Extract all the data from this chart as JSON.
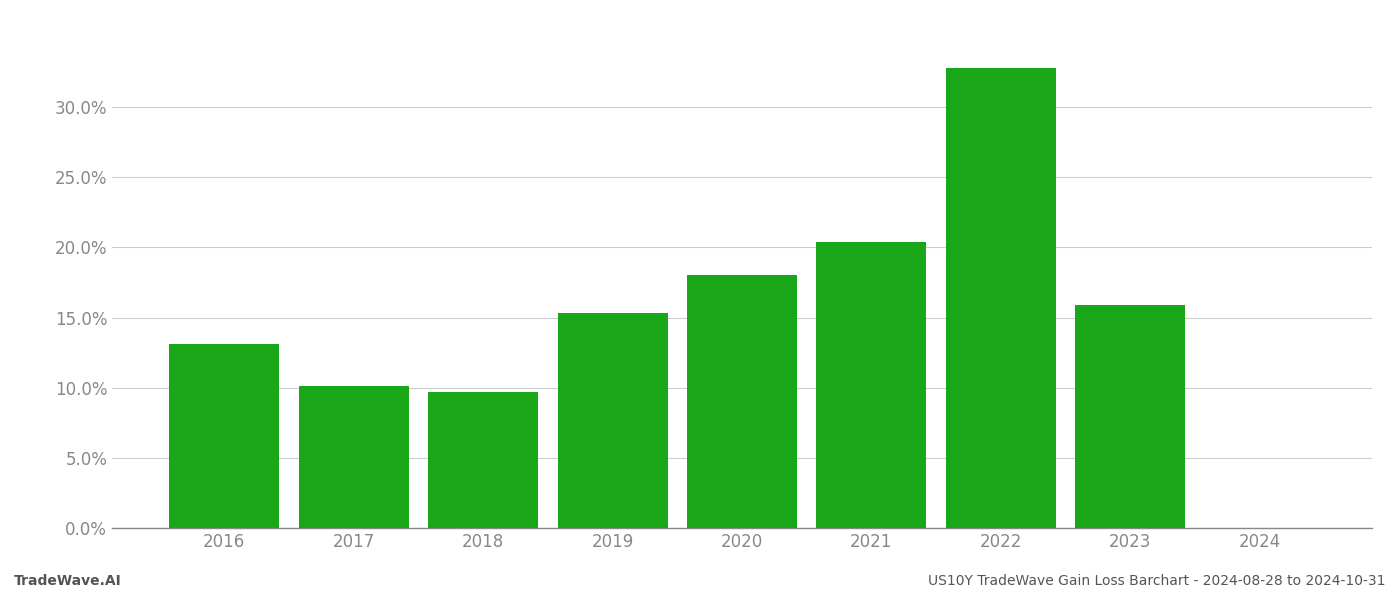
{
  "categories": [
    "2016",
    "2017",
    "2018",
    "2019",
    "2020",
    "2021",
    "2022",
    "2023",
    "2024"
  ],
  "values": [
    0.131,
    0.101,
    0.097,
    0.153,
    0.18,
    0.204,
    0.328,
    0.159,
    0.0
  ],
  "bar_color": "#1aa619",
  "background_color": "#ffffff",
  "grid_color": "#cccccc",
  "footer_left": "TradeWave.AI",
  "footer_right": "US10Y TradeWave Gain Loss Barchart - 2024-08-28 to 2024-10-31",
  "ylim": [
    0,
    0.355
  ],
  "yticks": [
    0.0,
    0.05,
    0.1,
    0.15,
    0.2,
    0.25,
    0.3
  ],
  "footer_fontsize": 10,
  "tick_fontsize": 12,
  "axis_label_color": "#888888",
  "footer_color": "#555555",
  "bar_width": 0.85
}
